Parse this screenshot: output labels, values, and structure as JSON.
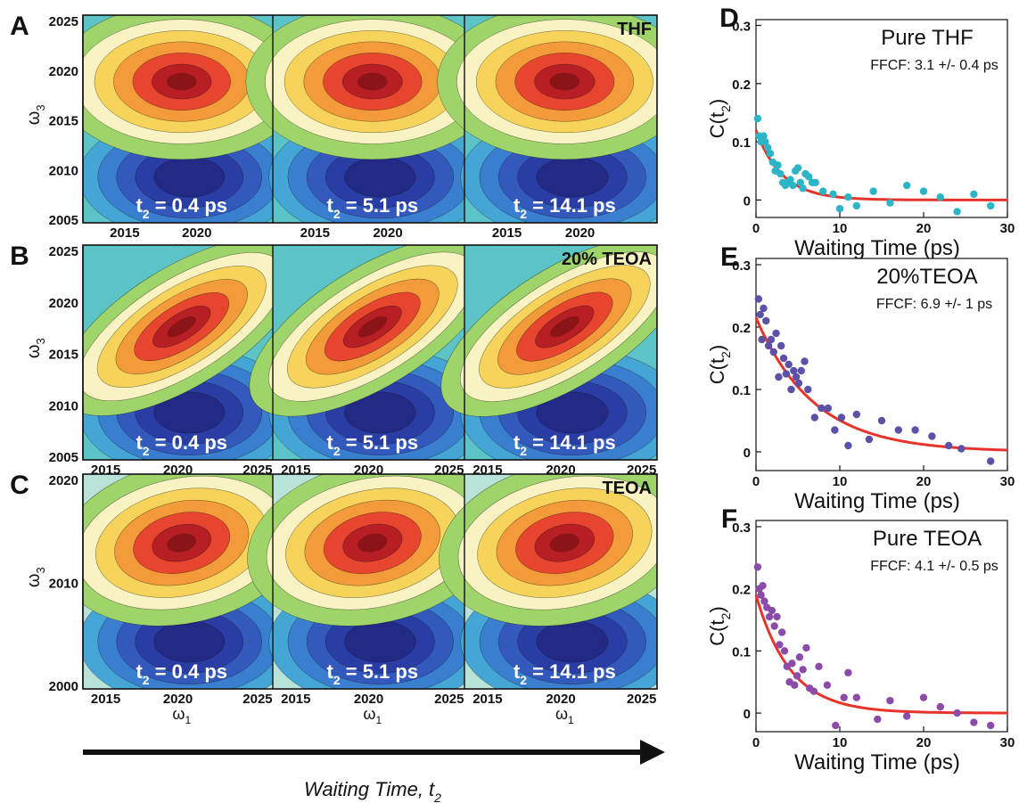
{
  "figure": {
    "colors": {
      "red": "#e8332a",
      "cyan": "#2bb5c7",
      "indigo": "#5b52a8",
      "purple": "#8a4ca8"
    },
    "spectra": {
      "ylabel": "ω",
      "ylabel_sub": "3",
      "xlabel": "ω",
      "xlabel_sub": "1",
      "t2_prefix": "t",
      "t2_sub": "2",
      "panel_times": [
        "= 0.4 ps",
        "= 5.1 ps",
        "= 14.1 ps"
      ],
      "rows": [
        {
          "letter": "A",
          "label": "THF",
          "yticks": [
            "2025",
            "2020",
            "2015",
            "2010",
            "2005"
          ],
          "xticks": [
            "2015",
            "2020"
          ]
        },
        {
          "letter": "B",
          "label": "20% TEOA",
          "yticks": [
            "2025",
            "2020",
            "2015",
            "2010",
            "2005"
          ],
          "xticks": [
            "2015",
            "2020",
            "2025"
          ]
        },
        {
          "letter": "C",
          "label": "TEOA",
          "yticks": [
            "2020",
            "2010",
            "2000"
          ],
          "xticks": [
            "2015",
            "2020",
            "2025"
          ]
        }
      ],
      "arrow_label": "Waiting Time,",
      "arrow_label_sub": "2",
      "arrow_label_prefix": "t"
    }
  },
  "chart_data": [
    {
      "type": "scatter",
      "letter": "D",
      "title": "Pure THF",
      "subtitle": "FFCF: 3.1 +/- 0.4 ps",
      "xlabel": "Waiting Time (ps)",
      "ylabel": "C(t",
      "ylabel_sub": "2",
      "xlim": [
        0,
        30
      ],
      "ylim": [
        -0.03,
        0.31
      ],
      "xticks": [
        0,
        10,
        20,
        30
      ],
      "yticks": [
        0,
        0.1,
        0.2,
        0.3
      ],
      "fit": {
        "a": 0.12,
        "tau": 3.1
      },
      "color": "#2bb5c7",
      "points": [
        [
          0.2,
          0.14
        ],
        [
          0.4,
          0.11
        ],
        [
          0.6,
          0.1
        ],
        [
          0.9,
          0.11
        ],
        [
          1.1,
          0.1
        ],
        [
          1.4,
          0.09
        ],
        [
          1.7,
          0.08
        ],
        [
          2.0,
          0.065
        ],
        [
          2.3,
          0.05
        ],
        [
          2.6,
          0.06
        ],
        [
          2.9,
          0.045
        ],
        [
          3.2,
          0.03
        ],
        [
          3.5,
          0.025
        ],
        [
          3.8,
          0.03
        ],
        [
          4.1,
          0.035
        ],
        [
          4.4,
          0.025
        ],
        [
          4.7,
          0.05
        ],
        [
          5.0,
          0.055
        ],
        [
          5.3,
          0.03
        ],
        [
          5.6,
          0.02
        ],
        [
          5.9,
          0.045
        ],
        [
          6.3,
          0.04
        ],
        [
          6.7,
          0.03
        ],
        [
          7.1,
          0.03
        ],
        [
          8.0,
          0.015
        ],
        [
          9.2,
          0.01
        ],
        [
          10.0,
          -0.015
        ],
        [
          11.0,
          0.005
        ],
        [
          12.0,
          -0.01
        ],
        [
          14.0,
          0.015
        ],
        [
          16.0,
          -0.005
        ],
        [
          18.0,
          0.025
        ],
        [
          20.0,
          0.015
        ],
        [
          22.0,
          0.005
        ],
        [
          24.0,
          -0.02
        ],
        [
          26.0,
          0.01
        ],
        [
          28.0,
          -0.01
        ]
      ]
    },
    {
      "type": "scatter",
      "letter": "E",
      "title": "20%TEOA",
      "subtitle": "FFCF: 6.9 +/- 1 ps",
      "xlabel": "Waiting Time (ps)",
      "ylabel": "C(t",
      "ylabel_sub": "2",
      "xlim": [
        0,
        30
      ],
      "ylim": [
        -0.03,
        0.31
      ],
      "xticks": [
        0,
        10,
        20,
        30
      ],
      "yticks": [
        0,
        0.1,
        0.2,
        0.3
      ],
      "fit": {
        "a": 0.215,
        "tau": 6.9
      },
      "color": "#5b52a8",
      "points": [
        [
          0.3,
          0.245
        ],
        [
          0.5,
          0.22
        ],
        [
          0.7,
          0.18
        ],
        [
          0.9,
          0.23
        ],
        [
          1.2,
          0.21
        ],
        [
          1.5,
          0.17
        ],
        [
          1.8,
          0.18
        ],
        [
          2.1,
          0.16
        ],
        [
          2.4,
          0.19
        ],
        [
          2.7,
          0.12
        ],
        [
          3.0,
          0.17
        ],
        [
          3.3,
          0.15
        ],
        [
          3.6,
          0.125
        ],
        [
          3.9,
          0.14
        ],
        [
          4.2,
          0.1
        ],
        [
          4.5,
          0.13
        ],
        [
          4.8,
          0.12
        ],
        [
          5.1,
          0.11
        ],
        [
          5.4,
          0.13
        ],
        [
          5.8,
          0.145
        ],
        [
          6.2,
          0.1
        ],
        [
          7.0,
          0.055
        ],
        [
          7.8,
          0.07
        ],
        [
          8.6,
          0.07
        ],
        [
          9.4,
          0.035
        ],
        [
          10.2,
          0.055
        ],
        [
          11.0,
          0.01
        ],
        [
          12.0,
          0.06
        ],
        [
          13.5,
          0.02
        ],
        [
          15.0,
          0.05
        ],
        [
          17.0,
          0.035
        ],
        [
          19.0,
          0.035
        ],
        [
          21.0,
          0.025
        ],
        [
          23.0,
          0.01
        ],
        [
          24.5,
          0.005
        ],
        [
          28.0,
          -0.015
        ]
      ]
    },
    {
      "type": "scatter",
      "letter": "F",
      "title": "Pure TEOA",
      "subtitle": "FFCF: 4.1 +/- 0.5 ps",
      "xlabel": "Waiting Time (ps)",
      "ylabel": "C(t",
      "ylabel_sub": "2",
      "xlim": [
        0,
        30
      ],
      "ylim": [
        -0.03,
        0.31
      ],
      "xticks": [
        0,
        10,
        20,
        30
      ],
      "yticks": [
        0,
        0.1,
        0.2,
        0.3
      ],
      "fit": {
        "a": 0.19,
        "tau": 4.1
      },
      "color": "#8a4ca8",
      "points": [
        [
          0.2,
          0.235
        ],
        [
          0.4,
          0.2
        ],
        [
          0.6,
          0.19
        ],
        [
          0.8,
          0.205
        ],
        [
          1.0,
          0.18
        ],
        [
          1.3,
          0.17
        ],
        [
          1.6,
          0.155
        ],
        [
          1.9,
          0.165
        ],
        [
          2.2,
          0.14
        ],
        [
          2.5,
          0.155
        ],
        [
          2.8,
          0.11
        ],
        [
          3.1,
          0.13
        ],
        [
          3.4,
          0.1
        ],
        [
          3.7,
          0.075
        ],
        [
          4.0,
          0.05
        ],
        [
          4.3,
          0.08
        ],
        [
          4.6,
          0.045
        ],
        [
          4.9,
          0.06
        ],
        [
          5.2,
          0.09
        ],
        [
          5.6,
          0.07
        ],
        [
          6.0,
          0.105
        ],
        [
          6.4,
          0.04
        ],
        [
          6.9,
          0.035
        ],
        [
          7.5,
          0.075
        ],
        [
          8.5,
          0.045
        ],
        [
          9.5,
          -0.02
        ],
        [
          10.5,
          0.025
        ],
        [
          11.0,
          0.065
        ],
        [
          12.0,
          0.025
        ],
        [
          14.5,
          -0.01
        ],
        [
          16.0,
          0.02
        ],
        [
          18.0,
          -0.005
        ],
        [
          20.0,
          0.025
        ],
        [
          22.0,
          0.01
        ],
        [
          24.0,
          0.0
        ],
        [
          26.0,
          -0.015
        ],
        [
          28.0,
          -0.02
        ]
      ]
    }
  ]
}
